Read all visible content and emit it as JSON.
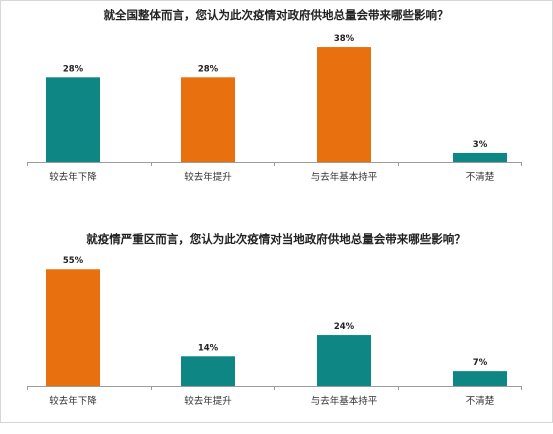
{
  "colors": {
    "teal": "#0e8683",
    "orange": "#e8700f",
    "axis": "#9c9c9c"
  },
  "chart_data": [
    {
      "type": "bar",
      "title": "就全国整体而言，您认为此次疫情对政府供地总量会带来哪些影响？",
      "categories": [
        "较去年下降",
        "较去年提升",
        "与去年基本持平",
        "不清楚"
      ],
      "values": [
        28,
        28,
        38,
        3
      ],
      "data_labels": [
        "28%",
        "28%",
        "38%",
        "3%"
      ],
      "bar_colors": [
        "teal",
        "orange",
        "orange",
        "teal"
      ],
      "ylim": [
        0,
        40
      ],
      "grid": false,
      "legend": "none"
    },
    {
      "type": "bar",
      "title": "就疫情严重区而言，您认为此次疫情对当地政府供地总量会带来哪些影响？",
      "categories": [
        "较去年下降",
        "较去年提升",
        "与去年基本持平",
        "不清楚"
      ],
      "values": [
        55,
        14,
        24,
        7
      ],
      "data_labels": [
        "55%",
        "14%",
        "24%",
        "7%"
      ],
      "bar_colors": [
        "orange",
        "teal",
        "teal",
        "teal"
      ],
      "ylim": [
        0,
        57
      ],
      "grid": false,
      "legend": "none"
    }
  ]
}
